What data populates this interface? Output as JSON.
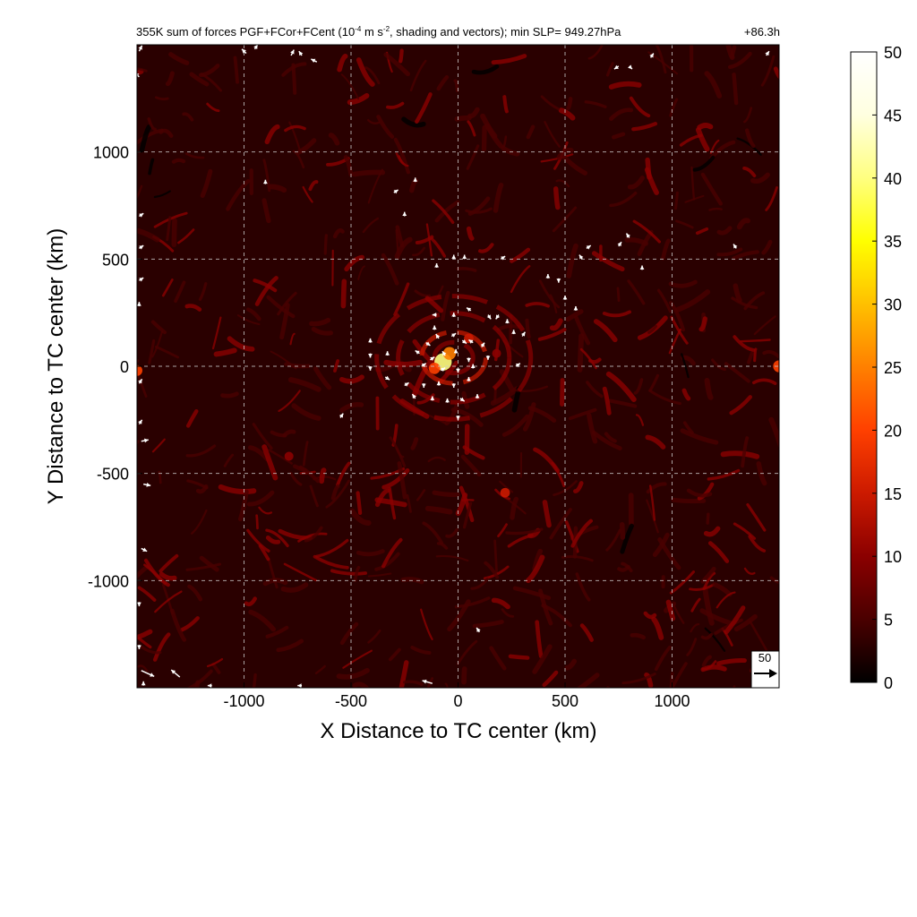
{
  "chart_data": {
    "type": "heatmap",
    "title_main": "355K sum of forces PGF+FCor+FCent (10",
    "title_exp1": "-4",
    "title_mid": " m s",
    "title_exp2": "-2",
    "title_tail": ", shading and vectors); min SLP= 949.27hPa",
    "time_label": "+86.3h",
    "xlabel": "X Distance to TC center (km)",
    "ylabel": "Y Distance to TC center (km)",
    "xlim": [
      -1500,
      1500
    ],
    "ylim": [
      -1500,
      1500
    ],
    "xticks": [
      -1000,
      -500,
      0,
      500,
      1000
    ],
    "yticks": [
      -1000,
      -500,
      0,
      500,
      1000
    ],
    "xtick_labels": [
      "-1000",
      "-500",
      "0",
      "500",
      "1000"
    ],
    "ytick_labels": [
      "-1000",
      "-500",
      "0",
      "500",
      "1000"
    ],
    "grid": true,
    "colorbar": {
      "range": [
        0,
        50
      ],
      "ticks": [
        0,
        5,
        10,
        15,
        20,
        25,
        30,
        35,
        40,
        45,
        50
      ],
      "tick_labels": [
        "0",
        "5",
        "10",
        "15",
        "20",
        "25",
        "30",
        "35",
        "40",
        "45",
        "50"
      ],
      "colors": [
        "#000000",
        "#4a0000",
        "#8b0000",
        "#cc1a00",
        "#ff4000",
        "#ff8000",
        "#ffc000",
        "#ffff00",
        "#ffff80",
        "#ffffe0",
        "#ffffff"
      ]
    },
    "reference_vector": {
      "label": "50",
      "magnitude": 50
    },
    "background_magnitude": 6,
    "hotspots": [
      {
        "x": -70,
        "y": 20,
        "value": 40
      },
      {
        "x": -40,
        "y": 60,
        "value": 25
      },
      {
        "x": -110,
        "y": -10,
        "value": 20
      },
      {
        "x": 50,
        "y": 130,
        "value": 14
      },
      {
        "x": 180,
        "y": 60,
        "value": 12
      },
      {
        "x": 1500,
        "y": 0,
        "value": 22
      },
      {
        "x": -1500,
        "y": -20,
        "value": 18
      },
      {
        "x": 220,
        "y": -590,
        "value": 14
      },
      {
        "x": -790,
        "y": -420,
        "value": 12
      }
    ],
    "vectors": [
      {
        "x": -1490,
        "y": 1470,
        "u": 2,
        "v": 4
      },
      {
        "x": -1490,
        "y": 1350,
        "u": -3,
        "v": 3
      },
      {
        "x": -990,
        "y": 1460,
        "u": -3,
        "v": 3
      },
      {
        "x": -950,
        "y": 1480,
        "u": 2,
        "v": 3
      },
      {
        "x": -780,
        "y": 1450,
        "u": 2,
        "v": 4
      },
      {
        "x": -730,
        "y": 1450,
        "u": -2,
        "v": 3
      },
      {
        "x": -660,
        "y": 1420,
        "u": -4,
        "v": 2
      },
      {
        "x": 750,
        "y": 1400,
        "u": -3,
        "v": -2
      },
      {
        "x": 800,
        "y": 1400,
        "u": 2,
        "v": -2
      },
      {
        "x": 900,
        "y": 1440,
        "u": 2,
        "v": 3
      },
      {
        "x": 1440,
        "y": 1450,
        "u": 2,
        "v": 3
      },
      {
        "x": -900,
        "y": 850,
        "u": 0,
        "v": 3
      },
      {
        "x": -300,
        "y": 810,
        "u": 3,
        "v": 2
      },
      {
        "x": -200,
        "y": 860,
        "u": 0,
        "v": 3
      },
      {
        "x": -250,
        "y": 700,
        "u": 0,
        "v": 3
      },
      {
        "x": -1490,
        "y": 700,
        "u": 3,
        "v": 2
      },
      {
        "x": -1490,
        "y": 550,
        "u": 3,
        "v": 2
      },
      {
        "x": 600,
        "y": 550,
        "u": 3,
        "v": 2
      },
      {
        "x": 580,
        "y": 500,
        "u": -2,
        "v": 3
      },
      {
        "x": 750,
        "y": 560,
        "u": 2,
        "v": 3
      },
      {
        "x": 800,
        "y": 600,
        "u": -2,
        "v": 3
      },
      {
        "x": 1300,
        "y": 550,
        "u": -2,
        "v": 3
      },
      {
        "x": 860,
        "y": 450,
        "u": 0,
        "v": 3
      },
      {
        "x": 420,
        "y": 410,
        "u": 0,
        "v": 3
      },
      {
        "x": 470,
        "y": 410,
        "u": 0,
        "v": -3
      },
      {
        "x": 500,
        "y": 310,
        "u": 0,
        "v": 3
      },
      {
        "x": 550,
        "y": 260,
        "u": 0,
        "v": 3
      },
      {
        "x": -20,
        "y": 500,
        "u": 0,
        "v": 3
      },
      {
        "x": 30,
        "y": 500,
        "u": 0,
        "v": 3
      },
      {
        "x": 200,
        "y": 500,
        "u": 3,
        "v": 2
      },
      {
        "x": -100,
        "y": 460,
        "u": 0,
        "v": 3
      },
      {
        "x": -1490,
        "y": 400,
        "u": 3,
        "v": 2
      },
      {
        "x": -1490,
        "y": 280,
        "u": 0,
        "v": 3
      },
      {
        "x": -100,
        "y": 240,
        "u": -3,
        "v": 0
      },
      {
        "x": -20,
        "y": 230,
        "u": 0,
        "v": 3
      },
      {
        "x": 60,
        "y": 260,
        "u": -3,
        "v": 2
      },
      {
        "x": 140,
        "y": 240,
        "u": 2,
        "v": -3
      },
      {
        "x": 190,
        "y": 240,
        "u": -2,
        "v": -3
      },
      {
        "x": 230,
        "y": 200,
        "u": 0,
        "v": 3
      },
      {
        "x": 260,
        "y": 150,
        "u": 0,
        "v": 3
      },
      {
        "x": 300,
        "y": 140,
        "u": 2,
        "v": 3
      },
      {
        "x": -110,
        "y": 170,
        "u": 0,
        "v": 3
      },
      {
        "x": -150,
        "y": 110,
        "u": 3,
        "v": -2
      },
      {
        "x": -90,
        "y": 130,
        "u": -2,
        "v": 3
      },
      {
        "x": -30,
        "y": 140,
        "u": 3,
        "v": 2
      },
      {
        "x": 20,
        "y": 120,
        "u": 3,
        "v": -2
      },
      {
        "x": 70,
        "y": 110,
        "u": -3,
        "v": 2
      },
      {
        "x": 110,
        "y": 90,
        "u": 2,
        "v": 3
      },
      {
        "x": 140,
        "y": 50,
        "u": 0,
        "v": -3
      },
      {
        "x": -410,
        "y": 110,
        "u": 0,
        "v": 3
      },
      {
        "x": -410,
        "y": 60,
        "u": 0,
        "v": -3
      },
      {
        "x": -410,
        "y": 0,
        "u": 0,
        "v": -3
      },
      {
        "x": -330,
        "y": 50,
        "u": 0,
        "v": 3
      },
      {
        "x": -180,
        "y": 60,
        "u": -3,
        "v": 2
      },
      {
        "x": -130,
        "y": 30,
        "u": 3,
        "v": 2
      },
      {
        "x": -60,
        "y": 50,
        "u": -2,
        "v": 3
      },
      {
        "x": -10,
        "y": 60,
        "u": 0,
        "v": 3
      },
      {
        "x": 50,
        "y": 40,
        "u": 0,
        "v": -3
      },
      {
        "x": -170,
        "y": 0,
        "u": 3,
        "v": 2
      },
      {
        "x": -80,
        "y": -20,
        "u": 3,
        "v": 2
      },
      {
        "x": 0,
        "y": -10,
        "u": 0,
        "v": -3
      },
      {
        "x": 70,
        "y": -10,
        "u": 0,
        "v": 3
      },
      {
        "x": 270,
        "y": 0,
        "u": 3,
        "v": 2
      },
      {
        "x": -340,
        "y": -50,
        "u": 3,
        "v": -2
      },
      {
        "x": -250,
        "y": -90,
        "u": 3,
        "v": 2
      },
      {
        "x": -160,
        "y": -80,
        "u": 0,
        "v": -3
      },
      {
        "x": -90,
        "y": -90,
        "u": 0,
        "v": 3
      },
      {
        "x": -20,
        "y": -80,
        "u": 0,
        "v": -3
      },
      {
        "x": 50,
        "y": -70,
        "u": 0,
        "v": 3
      },
      {
        "x": -200,
        "y": -150,
        "u": -2,
        "v": 3
      },
      {
        "x": -120,
        "y": -160,
        "u": 0,
        "v": 3
      },
      {
        "x": -50,
        "y": -170,
        "u": 0,
        "v": 3
      },
      {
        "x": 10,
        "y": -150,
        "u": 3,
        "v": -2
      },
      {
        "x": 90,
        "y": -150,
        "u": 0,
        "v": 3
      },
      {
        "x": 0,
        "y": -230,
        "u": 0,
        "v": -3
      },
      {
        "x": -550,
        "y": -240,
        "u": 2,
        "v": 3
      },
      {
        "x": -1490,
        "y": -80,
        "u": 2,
        "v": 3
      },
      {
        "x": -1490,
        "y": -270,
        "u": 2,
        "v": 3
      },
      {
        "x": -1480,
        "y": -350,
        "u": 5,
        "v": 1
      },
      {
        "x": -1470,
        "y": -550,
        "u": 5,
        "v": -1
      },
      {
        "x": -1480,
        "y": -850,
        "u": 4,
        "v": -2
      },
      {
        "x": -1490,
        "y": -1100,
        "u": 0,
        "v": -3
      },
      {
        "x": -1490,
        "y": -1300,
        "u": 0,
        "v": -3
      },
      {
        "x": 100,
        "y": -1240,
        "u": -2,
        "v": 3
      },
      {
        "x": -1480,
        "y": -1420,
        "u": 9,
        "v": -4
      },
      {
        "x": -1300,
        "y": -1450,
        "u": -6,
        "v": 5
      },
      {
        "x": -1470,
        "y": -1490,
        "u": 0,
        "v": 3
      },
      {
        "x": -1150,
        "y": -1490,
        "u": -3,
        "v": 0
      },
      {
        "x": -730,
        "y": -1490,
        "u": -3,
        "v": 0
      },
      {
        "x": -120,
        "y": -1480,
        "u": -7,
        "v": 2
      }
    ]
  }
}
